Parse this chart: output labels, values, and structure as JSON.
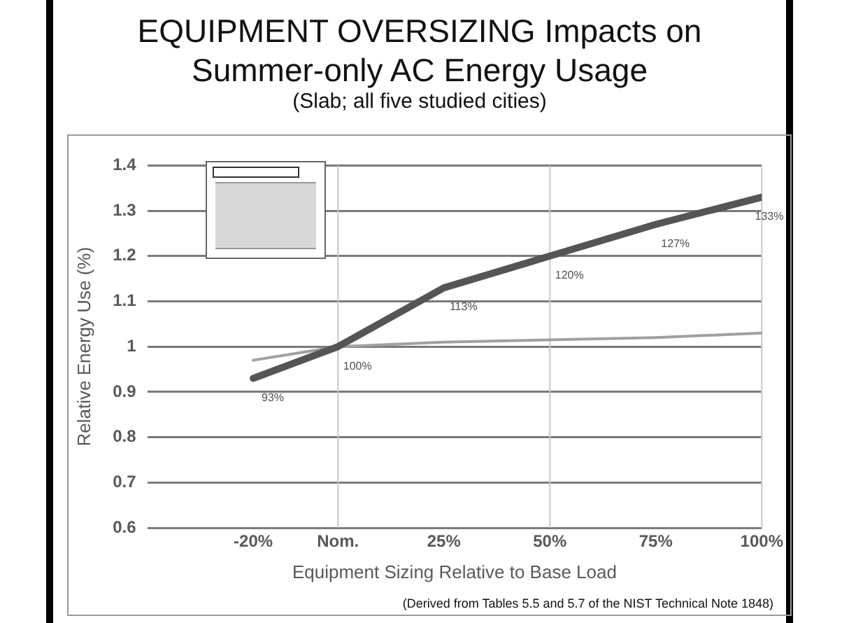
{
  "chart_data": {
    "type": "line",
    "title": "EQUIPMENT OVERSIZING Impacts on Summer-only AC Energy Usage",
    "subtitle": "(Slab; all five studied cities)",
    "xlabel": "Equipment Sizing Relative to Base Load",
    "ylabel": "Relative Energy Use (%)",
    "annotations": [
      "(Derived from Tables 5.5 and 5.7 of the NIST Technical Note 1848)"
    ],
    "x": [
      -20,
      0,
      25,
      50,
      75,
      100
    ],
    "series": [
      {
        "color": "#555555",
        "values": [
          0.93,
          1.0,
          1.13,
          1.2,
          1.27,
          1.33
        ],
        "value_labels": [
          "93%",
          "100%",
          "113%",
          "120%",
          "127%",
          "133%"
        ]
      },
      {
        "color": "#a0a0a0",
        "values": [
          0.97,
          1.0,
          1.01,
          1.015,
          1.02,
          1.03
        ]
      }
    ],
    "xlim": [
      -45,
      100
    ],
    "xticks": [
      {
        "value": -20,
        "label": "-20%"
      },
      {
        "value": 0,
        "label": "Nom."
      },
      {
        "value": 25,
        "label": "25%"
      },
      {
        "value": 50,
        "label": "50%"
      },
      {
        "value": 75,
        "label": "75%"
      },
      {
        "value": 100,
        "label": "100%"
      }
    ],
    "ylim": [
      0.6,
      1.4
    ],
    "yticks": [
      0.6,
      0.7,
      0.8,
      0.9,
      1,
      1.1,
      1.2,
      1.3,
      1.4
    ],
    "grid": "y",
    "legend": false,
    "marker": "none",
    "line_style": "solid",
    "ref_lines": [
      {
        "axis": "x",
        "value": 0,
        "color": "#c8c8c8"
      },
      {
        "axis": "x",
        "value": 50,
        "color": "#c8c8c8"
      }
    ]
  }
}
